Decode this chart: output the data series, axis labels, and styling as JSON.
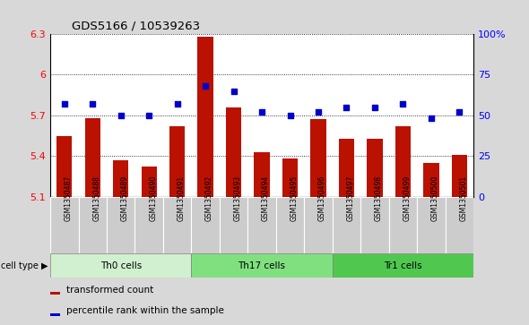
{
  "title": "GDS5166 / 10539263",
  "samples": [
    "GSM1350487",
    "GSM1350488",
    "GSM1350489",
    "GSM1350490",
    "GSM1350491",
    "GSM1350492",
    "GSM1350493",
    "GSM1350494",
    "GSM1350495",
    "GSM1350496",
    "GSM1350497",
    "GSM1350498",
    "GSM1350499",
    "GSM1350500",
    "GSM1350501"
  ],
  "transformed_count": [
    5.55,
    5.68,
    5.37,
    5.32,
    5.62,
    6.28,
    5.76,
    5.43,
    5.38,
    5.67,
    5.53,
    5.53,
    5.62,
    5.35,
    5.41
  ],
  "percentile_rank": [
    57,
    57,
    50,
    50,
    57,
    68,
    65,
    52,
    50,
    52,
    55,
    55,
    57,
    48,
    52
  ],
  "cell_types": [
    {
      "label": "Th0 cells",
      "start": 0,
      "end": 5,
      "color": "#d0f0d0"
    },
    {
      "label": "Th17 cells",
      "start": 5,
      "end": 10,
      "color": "#80e080"
    },
    {
      "label": "Tr1 cells",
      "start": 10,
      "end": 15,
      "color": "#50c850"
    }
  ],
  "ylim_left": [
    5.1,
    6.3
  ],
  "ylim_right": [
    0,
    100
  ],
  "yticks_left": [
    5.1,
    5.4,
    5.7,
    6.0,
    6.3
  ],
  "yticks_right": [
    0,
    25,
    50,
    75,
    100
  ],
  "ytick_labels_left": [
    "5.1",
    "5.4",
    "5.7",
    "6",
    "6.3"
  ],
  "ytick_labels_right": [
    "0",
    "25",
    "50",
    "75",
    "100%"
  ],
  "bar_color": "#bb1100",
  "dot_color": "#0000cc",
  "bg_color": "#d8d8d8",
  "plot_bg_color": "#ffffff",
  "xtick_bg_color": "#cccccc",
  "cell_type_label": "cell type",
  "legend_bar": "transformed count",
  "legend_dot": "percentile rank within the sample",
  "figsize": [
    5.9,
    3.63
  ],
  "dpi": 100
}
